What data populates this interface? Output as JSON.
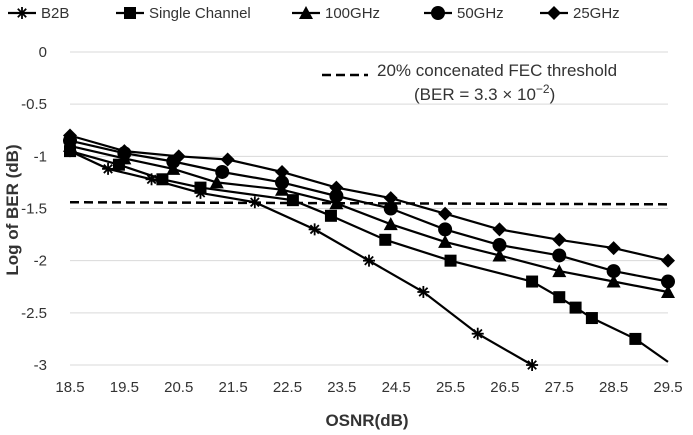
{
  "chart_data": {
    "type": "line",
    "xlabel": "OSNR(dB)",
    "ylabel": "Log of BER (dB)",
    "xlim": [
      18.5,
      29.5
    ],
    "ylim": [
      -3,
      0
    ],
    "x_ticks": [
      "18.5",
      "19.5",
      "20.5",
      "21.5",
      "22.5",
      "23.5",
      "24.5",
      "25.5",
      "26.5",
      "27.5",
      "28.5",
      "29.5"
    ],
    "y_ticks": [
      "0",
      "-0.5",
      "-1",
      "-1.5",
      "-2",
      "-2.5",
      "-3"
    ],
    "grid": "horizontal",
    "legend_position": "top",
    "series": [
      {
        "name": "B2B",
        "marker": "asterisk",
        "x": [
          18.5,
          19.2,
          20.0,
          20.9,
          21.9,
          23.0,
          24.0,
          25.0,
          26.0,
          27.0
        ],
        "y": [
          -0.95,
          -1.12,
          -1.22,
          -1.35,
          -1.44,
          -1.7,
          -2.0,
          -2.3,
          -2.7,
          -3.0
        ]
      },
      {
        "name": "Single Channel",
        "marker": "square",
        "x": [
          18.5,
          19.4,
          20.2,
          20.9,
          22.6,
          23.3,
          24.3,
          25.5,
          27.0,
          27.5,
          27.8,
          28.1,
          28.9
        ],
        "y": [
          -0.95,
          -1.08,
          -1.22,
          -1.3,
          -1.42,
          -1.57,
          -1.8,
          -2.0,
          -2.2,
          -2.35,
          -2.45,
          -2.55,
          -2.75
        ]
      },
      {
        "name": "100GHz",
        "marker": "triangle",
        "x": [
          18.5,
          19.5,
          20.4,
          21.2,
          22.4,
          23.4,
          24.4,
          25.4,
          26.4,
          27.5,
          28.5,
          29.5
        ],
        "y": [
          -0.9,
          -1.02,
          -1.12,
          -1.25,
          -1.32,
          -1.45,
          -1.65,
          -1.82,
          -1.95,
          -2.1,
          -2.2,
          -2.3
        ]
      },
      {
        "name": "50GHz",
        "marker": "circle",
        "x": [
          18.5,
          19.5,
          20.4,
          21.3,
          22.4,
          23.4,
          24.4,
          25.4,
          26.4,
          27.5,
          28.5,
          29.5
        ],
        "y": [
          -0.85,
          -0.97,
          -1.05,
          -1.15,
          -1.25,
          -1.38,
          -1.5,
          -1.7,
          -1.85,
          -1.95,
          -2.1,
          -2.2
        ]
      },
      {
        "name": "25GHz",
        "marker": "diamond",
        "x": [
          18.5,
          19.5,
          20.5,
          21.4,
          22.4,
          23.4,
          24.4,
          25.4,
          26.4,
          27.5,
          28.5,
          29.5
        ],
        "y": [
          -0.8,
          -0.95,
          -1.0,
          -1.03,
          -1.15,
          -1.3,
          -1.4,
          -1.55,
          -1.7,
          -1.8,
          -1.88,
          -2.0
        ]
      }
    ],
    "threshold": {
      "label": "20% concenated FEC threshold",
      "sublabel": "(BER = 3.3  ×  10",
      "exponent": "−2",
      "close": ")",
      "y": -1.44,
      "y_end": -1.46
    }
  }
}
